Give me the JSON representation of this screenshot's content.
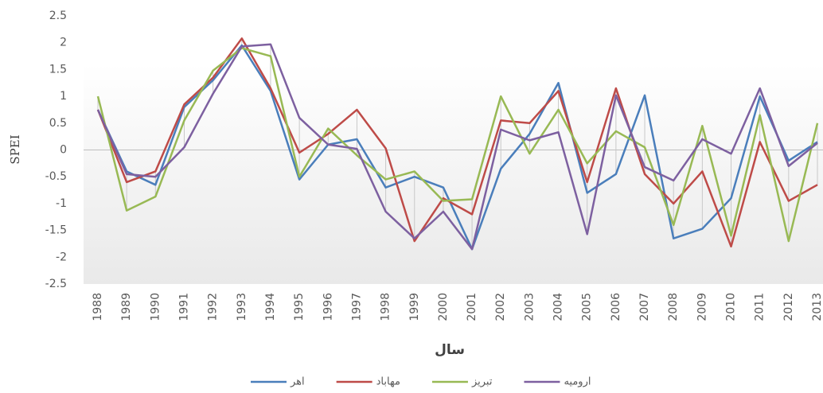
{
  "chart_data": {
    "type": "line",
    "x_label": "سال",
    "y_label": "SPEI",
    "categories": [
      "1988",
      "1989",
      "1990",
      "1991",
      "1992",
      "1993",
      "1994",
      "1995",
      "1996",
      "1997",
      "1998",
      "1999",
      "2000",
      "2001",
      "2002",
      "2003",
      "2004",
      "2005",
      "2006",
      "2007",
      "2008",
      "2009",
      "2010",
      "2011",
      "2012",
      "2013"
    ],
    "ylim": [
      -2.5,
      2.5
    ],
    "yticks": [
      2.5,
      2,
      1.5,
      1,
      0.5,
      0,
      -0.5,
      -1,
      -1.5,
      -2,
      -2.5
    ],
    "series": [
      {
        "name": "اهر",
        "color": "#4a7ebb",
        "values": [
          0.75,
          -0.4,
          -0.65,
          0.8,
          1.3,
          1.95,
          1.1,
          -0.55,
          0.1,
          0.2,
          -0.7,
          -0.5,
          -0.7,
          -1.85,
          -0.35,
          0.3,
          1.25,
          -0.8,
          -0.45,
          1.02,
          -1.65,
          -1.47,
          -0.9,
          1.0,
          -0.2,
          0.15
        ]
      },
      {
        "name": "مهاباد",
        "color": "#be4b48",
        "values": [
          0.75,
          -0.6,
          -0.4,
          0.85,
          1.35,
          2.08,
          1.15,
          -0.05,
          0.3,
          0.75,
          0.03,
          -1.7,
          -0.9,
          -1.2,
          0.55,
          0.5,
          1.1,
          -0.6,
          1.15,
          -0.45,
          -1.0,
          -0.4,
          -1.8,
          0.15,
          -0.95,
          -0.65
        ]
      },
      {
        "name": "تبریز",
        "color": "#98b954",
        "values": [
          1.0,
          -1.13,
          -0.87,
          0.55,
          1.48,
          1.9,
          1.75,
          -0.5,
          0.4,
          -0.1,
          -0.55,
          -0.4,
          -0.95,
          -0.92,
          1.0,
          -0.07,
          0.75,
          -0.25,
          0.35,
          0.05,
          -1.4,
          0.45,
          -1.6,
          0.65,
          -1.7,
          0.5
        ]
      },
      {
        "name": "ارومیه",
        "color": "#7d60a0",
        "values": [
          0.75,
          -0.45,
          -0.5,
          0.05,
          1.05,
          1.93,
          1.97,
          0.6,
          0.1,
          0.02,
          -1.15,
          -1.65,
          -1.15,
          -1.85,
          0.38,
          0.18,
          0.33,
          -1.57,
          1.02,
          -0.32,
          -0.57,
          0.2,
          -0.07,
          1.15,
          -0.3,
          0.13
        ]
      }
    ]
  }
}
